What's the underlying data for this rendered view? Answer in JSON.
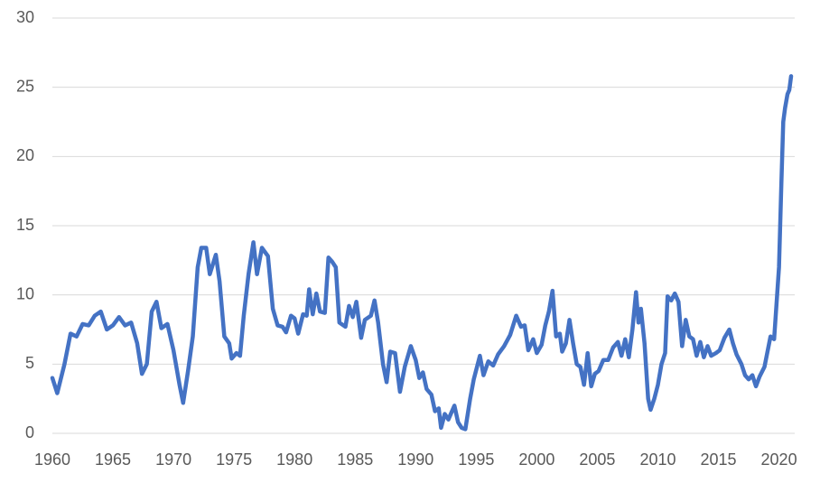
{
  "chart_data": {
    "type": "line",
    "x": [
      1960.0,
      1960.4,
      1961.0,
      1961.5,
      1962.0,
      1962.5,
      1963.0,
      1963.5,
      1964.0,
      1964.5,
      1965.0,
      1965.5,
      1966.0,
      1966.5,
      1967.0,
      1967.4,
      1967.8,
      1968.2,
      1968.6,
      1969.0,
      1969.5,
      1970.0,
      1970.5,
      1970.8,
      1971.2,
      1971.6,
      1972.0,
      1972.3,
      1972.7,
      1973.0,
      1973.5,
      1973.8,
      1974.2,
      1974.6,
      1974.8,
      1975.2,
      1975.5,
      1975.8,
      1976.2,
      1976.6,
      1976.9,
      1977.3,
      1977.8,
      1978.2,
      1978.6,
      1979.0,
      1979.3,
      1979.7,
      1980.0,
      1980.3,
      1980.7,
      1981.0,
      1981.2,
      1981.5,
      1981.8,
      1982.1,
      1982.5,
      1982.8,
      1983.1,
      1983.4,
      1983.7,
      1984.2,
      1984.5,
      1984.8,
      1985.1,
      1985.5,
      1985.8,
      1986.3,
      1986.6,
      1986.9,
      1987.3,
      1987.6,
      1987.9,
      1988.3,
      1988.7,
      1989.1,
      1989.6,
      1990.0,
      1990.3,
      1990.6,
      1990.9,
      1991.3,
      1991.6,
      1991.9,
      1992.1,
      1992.4,
      1992.7,
      1993.2,
      1993.5,
      1993.8,
      1994.1,
      1994.5,
      1994.8,
      1995.3,
      1995.6,
      1996.0,
      1996.4,
      1996.8,
      1997.3,
      1997.8,
      1998.3,
      1998.7,
      1999.0,
      1999.3,
      1999.7,
      2000.0,
      2000.4,
      2000.7,
      2001.0,
      2001.3,
      2001.6,
      2001.9,
      2002.1,
      2002.4,
      2002.7,
      2003.0,
      2003.3,
      2003.6,
      2003.9,
      2004.2,
      2004.5,
      2004.8,
      2005.1,
      2005.5,
      2005.9,
      2006.3,
      2006.7,
      2007.0,
      2007.3,
      2007.6,
      2007.9,
      2008.2,
      2008.4,
      2008.6,
      2008.9,
      2009.2,
      2009.4,
      2009.7,
      2010.0,
      2010.3,
      2010.6,
      2010.8,
      2011.1,
      2011.4,
      2011.7,
      2012.0,
      2012.3,
      2012.6,
      2012.9,
      2013.2,
      2013.5,
      2013.8,
      2014.1,
      2014.4,
      2014.8,
      2015.1,
      2015.5,
      2015.9,
      2016.2,
      2016.5,
      2016.9,
      2017.2,
      2017.5,
      2017.8,
      2018.1,
      2018.4,
      2018.8,
      2019.3,
      2019.6,
      2020.0,
      2020.2,
      2020.35,
      2020.5,
      2020.7,
      2020.85,
      2021.0
    ],
    "values": [
      4.0,
      2.9,
      5.0,
      7.2,
      7.0,
      7.9,
      7.8,
      8.5,
      8.8,
      7.5,
      7.8,
      8.4,
      7.8,
      8.0,
      6.5,
      4.3,
      5.0,
      8.8,
      9.5,
      7.6,
      7.9,
      6.0,
      3.5,
      2.2,
      4.5,
      7.0,
      12.0,
      13.4,
      13.4,
      11.5,
      12.9,
      11.0,
      7.0,
      6.5,
      5.4,
      5.8,
      5.6,
      8.5,
      11.5,
      13.8,
      11.5,
      13.4,
      12.8,
      9.0,
      7.8,
      7.7,
      7.3,
      8.5,
      8.3,
      7.2,
      8.6,
      8.5,
      10.4,
      8.6,
      10.1,
      8.8,
      8.7,
      12.7,
      12.4,
      12.0,
      8.0,
      7.7,
      9.2,
      8.4,
      9.5,
      6.9,
      8.2,
      8.5,
      9.6,
      8.0,
      5.0,
      3.7,
      5.9,
      5.8,
      3.0,
      4.8,
      6.3,
      5.3,
      4.0,
      4.4,
      3.2,
      2.8,
      1.6,
      1.8,
      0.4,
      1.4,
      1.0,
      2.0,
      0.8,
      0.4,
      0.3,
      2.5,
      3.9,
      5.6,
      4.2,
      5.2,
      4.9,
      5.7,
      6.3,
      7.1,
      8.5,
      7.7,
      7.8,
      6.0,
      6.8,
      5.8,
      6.4,
      7.8,
      8.8,
      10.3,
      7.0,
      7.2,
      5.9,
      6.5,
      8.2,
      6.5,
      5.0,
      4.8,
      3.5,
      5.8,
      3.4,
      4.3,
      4.5,
      5.3,
      5.3,
      6.2,
      6.6,
      5.6,
      6.8,
      5.5,
      7.5,
      10.2,
      8.0,
      9.0,
      6.5,
      2.5,
      1.7,
      2.5,
      3.5,
      5.0,
      5.8,
      9.9,
      9.6,
      10.1,
      9.5,
      6.3,
      8.2,
      7.0,
      6.8,
      5.6,
      6.6,
      5.5,
      6.3,
      5.6,
      5.8,
      6.0,
      6.9,
      7.5,
      6.5,
      5.7,
      5.0,
      4.2,
      3.9,
      4.2,
      3.4,
      4.1,
      4.8,
      7.0,
      6.8,
      12.0,
      18.0,
      22.5,
      23.5,
      24.5,
      24.8,
      25.8
    ],
    "color": "#4472c4",
    "xlim": [
      1960,
      2021.3
    ],
    "xticks": [
      1960,
      1965,
      1970,
      1975,
      1980,
      1985,
      1990,
      1995,
      2000,
      2005,
      2010,
      2015,
      2020
    ],
    "ylim": [
      0,
      30
    ],
    "yticks": [
      0,
      5,
      10,
      15,
      20,
      25,
      30
    ],
    "grid": true
  }
}
